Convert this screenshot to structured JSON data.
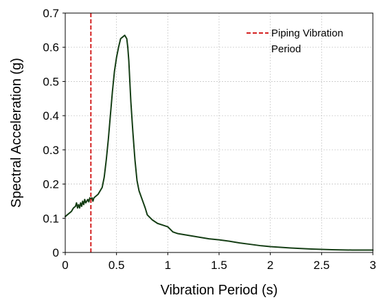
{
  "colors": {
    "series": "#143d14",
    "marker_line": "#d42020",
    "grid": "#c8c8c8",
    "frame": "#000000"
  },
  "chart_data": {
    "type": "line",
    "title": "",
    "xlabel": "Vibration Period (s)",
    "ylabel": "Spectral Acceleration (g)",
    "xlim": [
      0,
      3
    ],
    "ylim": [
      0,
      0.7
    ],
    "xticks": [
      0,
      0.5,
      1,
      1.5,
      2,
      2.5,
      3
    ],
    "yticks": [
      0,
      0.1,
      0.2,
      0.3,
      0.4,
      0.5,
      0.6,
      0.7
    ],
    "xtick_labels": [
      "0",
      "0.5",
      "1",
      "1.5",
      "2",
      "2.5",
      "3"
    ],
    "ytick_labels": [
      "0",
      "0.1",
      "0.2",
      "0.3",
      "0.4",
      "0.5",
      "0.6",
      "0.7"
    ],
    "grid": true,
    "legend_position": "top-right",
    "series": [
      {
        "name": "",
        "color": "#143d14",
        "x": [
          0.0,
          0.02,
          0.04,
          0.06,
          0.08,
          0.1,
          0.11,
          0.12,
          0.13,
          0.14,
          0.15,
          0.16,
          0.17,
          0.18,
          0.19,
          0.2,
          0.21,
          0.22,
          0.23,
          0.24,
          0.25,
          0.26,
          0.27,
          0.28,
          0.3,
          0.32,
          0.34,
          0.36,
          0.38,
          0.4,
          0.42,
          0.44,
          0.46,
          0.48,
          0.5,
          0.52,
          0.54,
          0.56,
          0.58,
          0.6,
          0.61,
          0.62,
          0.63,
          0.64,
          0.66,
          0.68,
          0.7,
          0.72,
          0.75,
          0.78,
          0.8,
          0.85,
          0.9,
          0.95,
          1.0,
          1.05,
          1.1,
          1.2,
          1.3,
          1.4,
          1.5,
          1.6,
          1.7,
          1.8,
          1.9,
          2.0,
          2.2,
          2.4,
          2.6,
          2.8,
          3.0
        ],
        "y": [
          0.105,
          0.11,
          0.115,
          0.12,
          0.13,
          0.135,
          0.145,
          0.13,
          0.14,
          0.13,
          0.145,
          0.135,
          0.15,
          0.14,
          0.155,
          0.145,
          0.15,
          0.155,
          0.148,
          0.16,
          0.155,
          0.16,
          0.15,
          0.16,
          0.165,
          0.17,
          0.18,
          0.19,
          0.22,
          0.27,
          0.33,
          0.4,
          0.47,
          0.53,
          0.57,
          0.6,
          0.625,
          0.63,
          0.635,
          0.625,
          0.6,
          0.56,
          0.5,
          0.44,
          0.35,
          0.27,
          0.21,
          0.18,
          0.155,
          0.13,
          0.11,
          0.095,
          0.085,
          0.08,
          0.075,
          0.06,
          0.055,
          0.05,
          0.045,
          0.04,
          0.037,
          0.033,
          0.028,
          0.024,
          0.02,
          0.017,
          0.013,
          0.01,
          0.008,
          0.007,
          0.007
        ]
      }
    ],
    "reference_line": {
      "x": 0.25,
      "label": "Piping Vibration",
      "label_line2": "Period",
      "color": "#d42020"
    }
  }
}
